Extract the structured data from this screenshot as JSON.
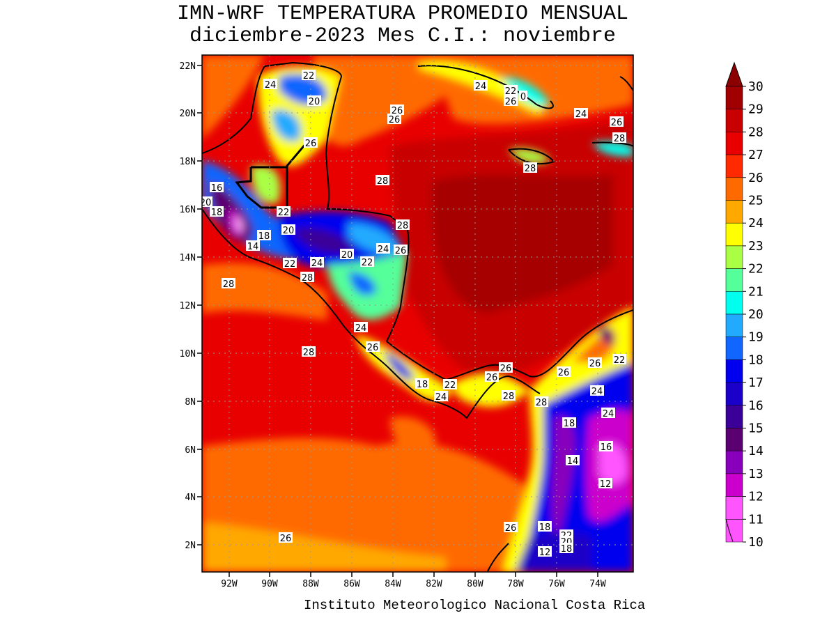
{
  "title": {
    "line1": "IMN-WRF  TEMPERATURA PROMEDIO MENSUAL",
    "line2": "diciembre-2023 Mes C.I.: noviembre"
  },
  "footer": "Instituto Meteorologico Nacional Costa Rica",
  "map": {
    "lon_range": [
      -93.2,
      -72.0
    ],
    "lat_range": [
      1.0,
      22.4
    ],
    "lon_ticks": [
      "92W",
      "90W",
      "88W",
      "86W",
      "84W",
      "82W",
      "80W",
      "78W",
      "76W",
      "74W"
    ],
    "lat_ticks": [
      "2N",
      "4N",
      "6N",
      "8N",
      "10N",
      "12N",
      "14N",
      "16N",
      "18N",
      "20N",
      "22N"
    ],
    "gridlines": true,
    "contour_labels": [
      {
        "text": "22"
      },
      {
        "text": "24"
      },
      {
        "text": "20"
      },
      {
        "text": "26"
      },
      {
        "text": "26"
      },
      {
        "text": "26"
      },
      {
        "text": "24"
      },
      {
        "text": "22"
      },
      {
        "text": "26"
      },
      {
        "text": "0"
      },
      {
        "text": "24"
      },
      {
        "text": "26"
      },
      {
        "text": "28"
      },
      {
        "text": "28"
      },
      {
        "text": "28"
      },
      {
        "text": "16"
      },
      {
        "text": "20"
      },
      {
        "text": "18"
      },
      {
        "text": "22"
      },
      {
        "text": "18"
      },
      {
        "text": "20"
      },
      {
        "text": "14"
      },
      {
        "text": "28"
      },
      {
        "text": "24"
      },
      {
        "text": "26"
      },
      {
        "text": "20"
      },
      {
        "text": "22"
      },
      {
        "text": "22"
      },
      {
        "text": "24"
      },
      {
        "text": "28"
      },
      {
        "text": "28"
      },
      {
        "text": "24"
      },
      {
        "text": "26"
      },
      {
        "text": "28"
      },
      {
        "text": "18"
      },
      {
        "text": "22"
      },
      {
        "text": "24"
      },
      {
        "text": "26"
      },
      {
        "text": "26"
      },
      {
        "text": "28"
      },
      {
        "text": "28"
      },
      {
        "text": "26"
      },
      {
        "text": "26"
      },
      {
        "text": "22"
      },
      {
        "text": "24"
      },
      {
        "text": "24"
      },
      {
        "text": "18"
      },
      {
        "text": "16"
      },
      {
        "text": "14"
      },
      {
        "text": "12"
      },
      {
        "text": "26"
      },
      {
        "text": "18"
      },
      {
        "text": "22"
      },
      {
        "text": "20"
      },
      {
        "text": "12"
      },
      {
        "text": "18"
      },
      {
        "text": "26"
      }
    ]
  },
  "colorbar": {
    "levels": [
      "30",
      "29",
      "28",
      "27",
      "26",
      "25",
      "24",
      "23",
      "22",
      "21",
      "20",
      "19",
      "18",
      "17",
      "16",
      "15",
      "14",
      "13",
      "12",
      "11",
      "10"
    ],
    "colors": [
      "#a10000",
      "#c80000",
      "#e80000",
      "#ff2a00",
      "#ff6a00",
      "#ffa800",
      "#ffff00",
      "#aaff44",
      "#55ff99",
      "#00ffee",
      "#22aaff",
      "#1166ff",
      "#0000ee",
      "#1a00c8",
      "#3a0098",
      "#5a0070",
      "#8800bb",
      "#cc00cc",
      "#ff00ff",
      "#ff55ff",
      "#ffaaff"
    ],
    "top_arrow_color": "#8b0000"
  }
}
